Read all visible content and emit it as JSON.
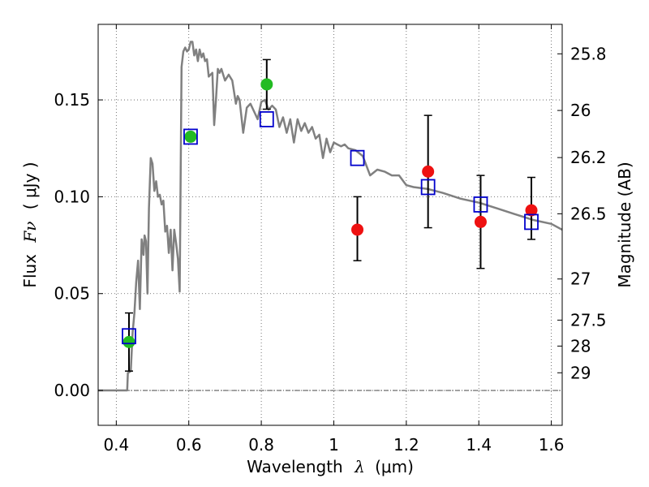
{
  "chart_data": {
    "type": "scatter",
    "title": "",
    "xlabel": {
      "text": "Wavelength",
      "symbol": "λ",
      "unit": "(μm)"
    },
    "ylabel": {
      "text": "Flux",
      "symbol": "Fν",
      "unit": "( μJy )"
    },
    "ylabel_right": "Magnitude (AB)",
    "xlim": [
      0.35,
      1.63
    ],
    "ylim": [
      -0.018,
      0.189
    ],
    "grid": true,
    "grid_style": "dotted",
    "x_ticks": [
      {
        "value": 0.4,
        "label": "0.4"
      },
      {
        "value": 0.6,
        "label": "0.6"
      },
      {
        "value": 0.8,
        "label": "0.8"
      },
      {
        "value": 1.0,
        "label": "1"
      },
      {
        "value": 1.2,
        "label": "1.2"
      },
      {
        "value": 1.4,
        "label": "1.4"
      },
      {
        "value": 1.6,
        "label": "1.6"
      }
    ],
    "y_ticks": [
      {
        "value": 0.0,
        "label": "0.00"
      },
      {
        "value": 0.05,
        "label": "0.05"
      },
      {
        "value": 0.1,
        "label": "0.10"
      },
      {
        "value": 0.15,
        "label": "0.15"
      }
    ],
    "right_ticks": [
      {
        "value": 25.8,
        "label": "25.8"
      },
      {
        "value": 26.0,
        "label": "26"
      },
      {
        "value": 26.2,
        "label": "26.2"
      },
      {
        "value": 26.5,
        "label": "26.5"
      },
      {
        "value": 27.0,
        "label": "27"
      },
      {
        "value": 27.5,
        "label": "27.5"
      },
      {
        "value": 28.0,
        "label": "28"
      },
      {
        "value": 29.0,
        "label": "29"
      }
    ],
    "zero_line": 0.0,
    "model_spectrum": [
      [
        0.35,
        0.0
      ],
      [
        0.43,
        0.0
      ],
      [
        0.432,
        0.009
      ],
      [
        0.44,
        0.01
      ],
      [
        0.445,
        0.03
      ],
      [
        0.45,
        0.04
      ],
      [
        0.455,
        0.056
      ],
      [
        0.46,
        0.067
      ],
      [
        0.465,
        0.042
      ],
      [
        0.47,
        0.078
      ],
      [
        0.475,
        0.07
      ],
      [
        0.478,
        0.08
      ],
      [
        0.482,
        0.077
      ],
      [
        0.486,
        0.05
      ],
      [
        0.49,
        0.094
      ],
      [
        0.495,
        0.12
      ],
      [
        0.5,
        0.117
      ],
      [
        0.505,
        0.103
      ],
      [
        0.51,
        0.108
      ],
      [
        0.515,
        0.1
      ],
      [
        0.52,
        0.101
      ],
      [
        0.525,
        0.096
      ],
      [
        0.53,
        0.098
      ],
      [
        0.535,
        0.082
      ],
      [
        0.54,
        0.085
      ],
      [
        0.545,
        0.071
      ],
      [
        0.55,
        0.083
      ],
      [
        0.555,
        0.062
      ],
      [
        0.56,
        0.083
      ],
      [
        0.565,
        0.076
      ],
      [
        0.57,
        0.068
      ],
      [
        0.575,
        0.051
      ],
      [
        0.58,
        0.167
      ],
      [
        0.585,
        0.175
      ],
      [
        0.59,
        0.177
      ],
      [
        0.595,
        0.175
      ],
      [
        0.6,
        0.176
      ],
      [
        0.605,
        0.18
      ],
      [
        0.61,
        0.18
      ],
      [
        0.615,
        0.173
      ],
      [
        0.62,
        0.176
      ],
      [
        0.625,
        0.17
      ],
      [
        0.63,
        0.176
      ],
      [
        0.635,
        0.172
      ],
      [
        0.64,
        0.174
      ],
      [
        0.645,
        0.17
      ],
      [
        0.65,
        0.171
      ],
      [
        0.655,
        0.162
      ],
      [
        0.66,
        0.163
      ],
      [
        0.665,
        0.164
      ],
      [
        0.67,
        0.137
      ],
      [
        0.675,
        0.15
      ],
      [
        0.68,
        0.166
      ],
      [
        0.685,
        0.164
      ],
      [
        0.69,
        0.166
      ],
      [
        0.7,
        0.16
      ],
      [
        0.71,
        0.163
      ],
      [
        0.72,
        0.16
      ],
      [
        0.73,
        0.148
      ],
      [
        0.735,
        0.152
      ],
      [
        0.74,
        0.15
      ],
      [
        0.75,
        0.133
      ],
      [
        0.76,
        0.146
      ],
      [
        0.77,
        0.148
      ],
      [
        0.78,
        0.144
      ],
      [
        0.79,
        0.14
      ],
      [
        0.8,
        0.149
      ],
      [
        0.81,
        0.15
      ],
      [
        0.82,
        0.145
      ],
      [
        0.83,
        0.147
      ],
      [
        0.84,
        0.145
      ],
      [
        0.85,
        0.136
      ],
      [
        0.86,
        0.141
      ],
      [
        0.87,
        0.133
      ],
      [
        0.88,
        0.14
      ],
      [
        0.89,
        0.128
      ],
      [
        0.9,
        0.14
      ],
      [
        0.91,
        0.134
      ],
      [
        0.92,
        0.138
      ],
      [
        0.93,
        0.133
      ],
      [
        0.94,
        0.136
      ],
      [
        0.95,
        0.13
      ],
      [
        0.96,
        0.132
      ],
      [
        0.97,
        0.12
      ],
      [
        0.98,
        0.13
      ],
      [
        0.99,
        0.123
      ],
      [
        1.0,
        0.128
      ],
      [
        1.01,
        0.127
      ],
      [
        1.02,
        0.126
      ],
      [
        1.03,
        0.127
      ],
      [
        1.04,
        0.125
      ],
      [
        1.06,
        0.124
      ],
      [
        1.08,
        0.121
      ],
      [
        1.1,
        0.111
      ],
      [
        1.12,
        0.114
      ],
      [
        1.14,
        0.113
      ],
      [
        1.16,
        0.111
      ],
      [
        1.18,
        0.111
      ],
      [
        1.2,
        0.106
      ],
      [
        1.22,
        0.105
      ],
      [
        1.26,
        0.104
      ],
      [
        1.3,
        0.102
      ],
      [
        1.35,
        0.099
      ],
      [
        1.4,
        0.097
      ],
      [
        1.45,
        0.094
      ],
      [
        1.5,
        0.091
      ],
      [
        1.55,
        0.088
      ],
      [
        1.6,
        0.086
      ],
      [
        1.63,
        0.083
      ]
    ],
    "model_photometry": [
      {
        "x": 0.435,
        "y": 0.028
      },
      {
        "x": 0.605,
        "y": 0.131
      },
      {
        "x": 0.815,
        "y": 0.14
      },
      {
        "x": 1.065,
        "y": 0.12
      },
      {
        "x": 1.26,
        "y": 0.105
      },
      {
        "x": 1.405,
        "y": 0.096
      },
      {
        "x": 1.545,
        "y": 0.087
      }
    ],
    "observed_green": [
      {
        "x": 0.435,
        "y": 0.025,
        "yerr": 0.015
      },
      {
        "x": 0.605,
        "y": 0.131,
        "yerr": 0.0
      },
      {
        "x": 0.815,
        "y": 0.158,
        "yerr": 0.0128
      }
    ],
    "observed_red": [
      {
        "x": 1.065,
        "y": 0.083,
        "ylo": 0.067,
        "yhi": 0.1
      },
      {
        "x": 1.26,
        "y": 0.113,
        "ylo": 0.084,
        "yhi": 0.142
      },
      {
        "x": 1.405,
        "y": 0.087,
        "ylo": 0.063,
        "yhi": 0.111
      },
      {
        "x": 1.545,
        "y": 0.093,
        "ylo": 0.078,
        "yhi": 0.11
      }
    ],
    "colors": {
      "spectrum": "#808080",
      "model_marker": "#0000cc",
      "green_marker": "#22bb22",
      "red_marker": "#ee1111",
      "errorbar": "#000000",
      "grid": "#555555"
    }
  }
}
